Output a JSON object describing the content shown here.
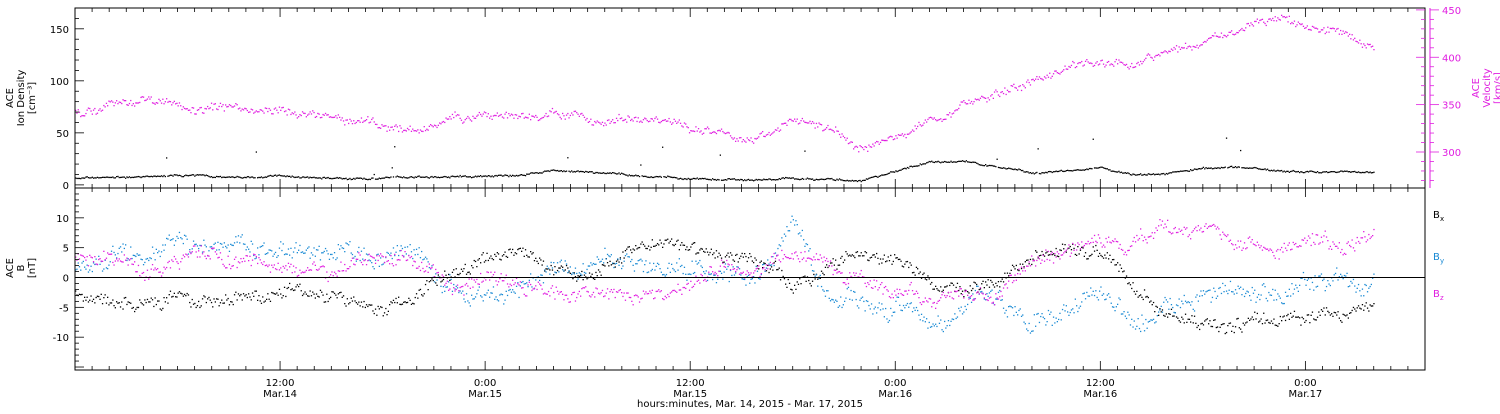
{
  "colors": {
    "black": "#000000",
    "magenta": "#e01ee0",
    "blue": "#1a8ad4"
  },
  "xaxis": {
    "tick_labels": [
      {
        "t": 12,
        "time": "12:00",
        "date": "Mar.14"
      },
      {
        "t": 24,
        "time": "0:00",
        "date": "Mar.15"
      },
      {
        "t": 36,
        "time": "12:00",
        "date": "Mar.15"
      },
      {
        "t": 48,
        "time": "0:00",
        "date": "Mar.16"
      },
      {
        "t": 60,
        "time": "12:00",
        "date": "Mar.16"
      },
      {
        "t": 72,
        "time": "0:00",
        "date": "Mar.17"
      }
    ],
    "title": "hours:minutes, Mar. 14, 2015 - Mar. 17, 2015"
  },
  "chart_data": [
    {
      "type": "scatter",
      "panel": "top",
      "x_unit": "hours from Mar. 14, 2015 05:30",
      "xlim": [
        0,
        79
      ],
      "ylabel_lines": [
        "ACE",
        "Ion Density",
        "[cm⁻³]"
      ],
      "ylim": [
        -3,
        170
      ],
      "yticks": [
        "0",
        "50",
        "100",
        "150"
      ],
      "ytick_values": [
        0,
        50,
        100,
        150
      ],
      "y2label_lines": [
        "ACE",
        "Velocity",
        "[km/s]"
      ],
      "y2lim": [
        262,
        452
      ],
      "y2ticks": [
        "300",
        "350",
        "400",
        "450"
      ],
      "y2tick_values": [
        300,
        350,
        400,
        450
      ],
      "series": [
        {
          "axis": "left",
          "color": "#000000",
          "x": [
            0,
            2,
            4,
            6,
            8,
            10,
            12,
            14,
            16,
            18,
            20,
            22,
            24,
            26,
            28,
            30,
            32,
            34,
            36,
            38,
            40,
            42,
            44,
            46,
            48,
            50,
            52,
            54,
            56,
            58,
            60,
            62,
            64,
            66,
            68,
            70,
            72,
            74,
            76
          ],
          "y": [
            7,
            8,
            8,
            10,
            9,
            8,
            9,
            8,
            7,
            7,
            8,
            9,
            9,
            10,
            14,
            12,
            10,
            8,
            7,
            6,
            5,
            6,
            6,
            4,
            13,
            24,
            23,
            18,
            12,
            14,
            16,
            10,
            12,
            16,
            18,
            15,
            13,
            14,
            12
          ]
        },
        {
          "axis": "right",
          "color": "#e01ee0",
          "x": [
            0,
            2,
            4,
            6,
            8,
            10,
            12,
            14,
            16,
            18,
            20,
            22,
            24,
            26,
            28,
            30,
            32,
            34,
            36,
            38,
            40,
            42,
            44,
            46,
            48,
            50,
            52,
            54,
            56,
            58,
            60,
            62,
            64,
            66,
            68,
            70,
            72,
            74,
            76
          ],
          "y": [
            346,
            352,
            357,
            350,
            348,
            345,
            344,
            338,
            332,
            328,
            324,
            333,
            340,
            338,
            342,
            338,
            334,
            329,
            325,
            321,
            316,
            330,
            325,
            300,
            318,
            332,
            346,
            362,
            375,
            388,
            398,
            394,
            405,
            420,
            430,
            440,
            436,
            428,
            410
          ]
        }
      ]
    },
    {
      "type": "scatter",
      "panel": "bottom",
      "x_unit": "hours from Mar. 14, 2015 05:30",
      "xlim": [
        0,
        79
      ],
      "ylabel_lines": [
        "ACE",
        "B",
        "[nT]"
      ],
      "ylim": [
        -15.5,
        15
      ],
      "yticks": [
        "-10",
        "-5",
        "0",
        "5",
        "10"
      ],
      "ytick_values": [
        -10,
        -5,
        0,
        5,
        10
      ],
      "zero_line": true,
      "legend": [
        "B",
        "B",
        "B"
      ],
      "legend_sub": [
        "x",
        "y",
        "z"
      ],
      "series": [
        {
          "name": "Bx",
          "color": "#000000",
          "x": [
            0,
            2,
            4,
            6,
            8,
            10,
            12,
            14,
            16,
            18,
            20,
            22,
            24,
            26,
            28,
            30,
            32,
            34,
            36,
            38,
            40,
            42,
            44,
            46,
            48,
            50,
            52,
            54,
            56,
            58,
            60,
            62,
            64,
            66,
            68,
            70,
            72,
            74,
            76
          ],
          "y": [
            -2,
            -4,
            -5,
            -4,
            -5,
            -4,
            -3,
            -2,
            -3,
            -4,
            -3,
            1,
            3,
            4,
            2,
            1,
            3,
            5,
            6,
            4,
            3,
            -1,
            2,
            4,
            4,
            -1,
            -3,
            -1,
            3,
            5,
            5,
            -2,
            -6,
            -8,
            -8,
            -7,
            -6,
            -6,
            -4
          ]
        },
        {
          "name": "By",
          "color": "#1a8ad4",
          "x": [
            0,
            2,
            4,
            6,
            8,
            10,
            12,
            14,
            16,
            18,
            20,
            22,
            24,
            26,
            28,
            30,
            32,
            34,
            36,
            38,
            40,
            42,
            44,
            46,
            48,
            50,
            52,
            54,
            56,
            58,
            60,
            62,
            64,
            66,
            68,
            70,
            72,
            74,
            76
          ],
          "y": [
            2,
            3,
            4,
            5,
            5,
            6,
            4,
            3,
            4,
            3,
            3,
            -2,
            -3,
            -2,
            2,
            3,
            4,
            3,
            2,
            0,
            1,
            9,
            -2,
            -3,
            -5,
            -8,
            -5,
            -2,
            -8,
            -6,
            -3,
            -9,
            -4,
            -4,
            -3,
            -2,
            -1,
            -1,
            -1
          ]
        },
        {
          "name": "Bz",
          "color": "#e01ee0",
          "x": [
            0,
            2,
            4,
            6,
            8,
            10,
            12,
            14,
            16,
            18,
            20,
            22,
            24,
            26,
            28,
            30,
            32,
            34,
            36,
            38,
            40,
            42,
            44,
            46,
            48,
            50,
            52,
            54,
            56,
            58,
            60,
            62,
            64,
            66,
            68,
            70,
            72,
            74,
            76
          ],
          "y": [
            4,
            3,
            1,
            3,
            4,
            3,
            2,
            1,
            2,
            3,
            2,
            -1,
            -2,
            -2,
            -2,
            -3,
            -2,
            -2,
            -1,
            2,
            0,
            4,
            2,
            1,
            -3,
            -4,
            -3,
            -2,
            3,
            4,
            5,
            7,
            9,
            8,
            8,
            6,
            6,
            6,
            8
          ]
        }
      ]
    }
  ]
}
